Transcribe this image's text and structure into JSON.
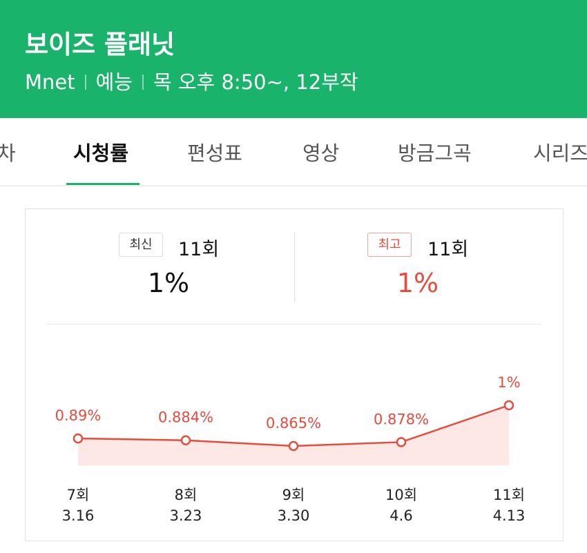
{
  "header": {
    "title": "보이즈 플래닛",
    "channel": "Mnet",
    "genre": "예능",
    "schedule": "목 오후 8:50~, 12부작"
  },
  "tabs": [
    "차",
    "시청률",
    "편성표",
    "영상",
    "방금그곡",
    "시리즈"
  ],
  "summary": {
    "latest": {
      "badge": "최신",
      "episode": "11회",
      "rating": "1%"
    },
    "highest": {
      "badge": "최고",
      "episode": "11회",
      "rating": "1%"
    }
  },
  "chart_data": {
    "type": "line",
    "categories": [
      "7회",
      "8회",
      "9회",
      "10회",
      "11회"
    ],
    "dates": [
      "3.16",
      "3.23",
      "3.30",
      "4.6",
      "4.13"
    ],
    "values": [
      0.89,
      0.884,
      0.865,
      0.878,
      1
    ],
    "value_labels": [
      "0.89%",
      "0.884%",
      "0.865%",
      "0.878%",
      "1%"
    ],
    "color": "#e64c3c"
  }
}
